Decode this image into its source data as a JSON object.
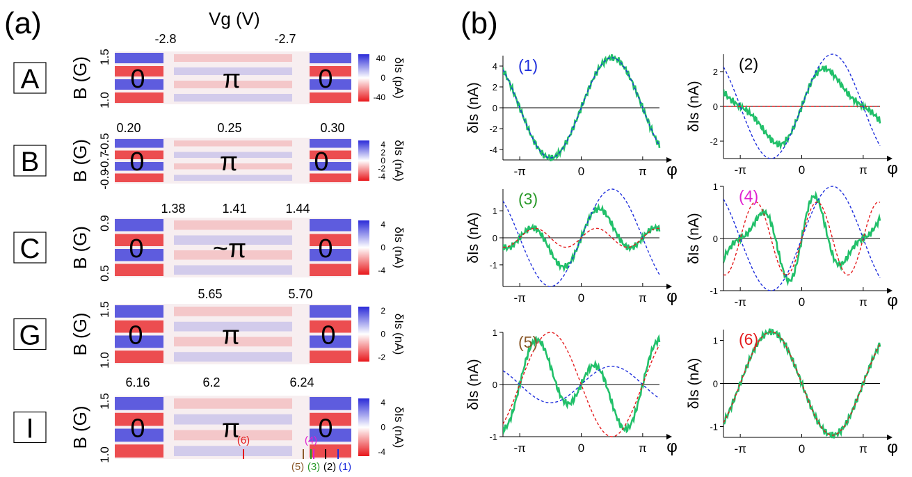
{
  "panel_labels": {
    "a": "(a)",
    "b": "(b)"
  },
  "colors": {
    "blue": "#1f2fdc",
    "red": "#e41a1c",
    "green": "#22c06a",
    "pos_cmap": "#2b2bd8",
    "neg_cmap": "#e8171b"
  },
  "panel_a": {
    "top_axis_label": "Vg (V)",
    "rows": [
      {
        "id": "A",
        "ylabel": "B (G)",
        "yticks": [
          "1.0",
          "1.5"
        ],
        "xticks": [
          "-2.8",
          "-2.7"
        ],
        "cbar_label": "δIs (pA)",
        "cbar_ticks": [
          "40",
          "0",
          "-40"
        ],
        "regions": [
          "0",
          "π",
          "0"
        ]
      },
      {
        "id": "B",
        "ylabel": "B (G)",
        "yticks": [
          "-0.9",
          "-0.7",
          "-0.5"
        ],
        "xticks": [
          "0.20",
          "0.25",
          "0.30"
        ],
        "cbar_label": "δIs (nA)",
        "cbar_ticks": [
          "4",
          "2",
          "0",
          "-2",
          "-4"
        ],
        "regions": [
          "0",
          "π",
          "0"
        ]
      },
      {
        "id": "C",
        "ylabel": "B (G)",
        "yticks": [
          "0.5",
          "0.9"
        ],
        "xticks": [
          "1.38",
          "1.41",
          "1.44"
        ],
        "cbar_label": "δIs (nA)",
        "cbar_ticks": [
          "4",
          "0",
          "-4"
        ],
        "regions": [
          "0",
          "~π",
          "0"
        ]
      },
      {
        "id": "G",
        "ylabel": "B (G)",
        "yticks": [
          "1.0",
          "1.5"
        ],
        "xticks": [
          "5.65",
          "5.70"
        ],
        "cbar_label": "δIs (nA)",
        "cbar_ticks": [
          "2",
          "0",
          "-2"
        ],
        "regions": [
          "0",
          "π",
          "0"
        ]
      },
      {
        "id": "I",
        "ylabel": "B (G)",
        "yticks": [
          "1.0",
          "1.5"
        ],
        "xticks": [
          "6.16",
          "6.2",
          "6.24"
        ],
        "cbar_label": "δIs (nA)",
        "cbar_ticks": [
          "4",
          "0",
          "-4"
        ],
        "regions": [
          "0",
          "π",
          "0"
        ],
        "markers": [
          "(6)",
          "(4)",
          "(5)",
          "(3)",
          "(2)",
          "(1)"
        ]
      }
    ]
  },
  "chart_data": [
    {
      "type": "line",
      "label": "(1)",
      "ylabel": "δIs (nA)",
      "xlabel": "φ",
      "xticks": [
        "-π",
        "0",
        "π"
      ],
      "yticks": [
        "4",
        "2",
        "0",
        "-2",
        "-4"
      ],
      "ylim": [
        -5,
        5
      ],
      "xlim": [
        -4.0,
        4.0
      ],
      "series": [
        {
          "values_desc": "measured",
          "amplitude": 4.8,
          "harmonics": [
            [
              1,
              4.8,
              0
            ]
          ],
          "style": "green"
        },
        {
          "harmonics": [
            [
              1,
              4.8,
              0
            ]
          ],
          "style": "blue-dashed"
        }
      ]
    },
    {
      "type": "line",
      "label": "(2)",
      "ylabel": "δIs (nA)",
      "xlabel": "φ",
      "xticks": [
        "-π",
        "0",
        "π"
      ],
      "yticks": [
        "2",
        "0",
        "-2"
      ],
      "ylim": [
        -3,
        3
      ],
      "xlim": [
        -4.0,
        4.0
      ],
      "series": [
        {
          "harmonics": [
            [
              1,
              1.9,
              0
            ],
            [
              2,
              0.6,
              0
            ]
          ],
          "style": "green"
        },
        {
          "harmonics": [
            [
              1,
              3.0,
              0
            ]
          ],
          "style": "blue-dashed"
        },
        {
          "harmonics": [],
          "style": "red-dashed"
        }
      ]
    },
    {
      "type": "line",
      "label": "(3)",
      "ylabel": "δIs (nA)",
      "xlabel": "φ",
      "xticks": [
        "-π",
        "0",
        "π"
      ],
      "yticks": [
        "1",
        "0",
        "-1"
      ],
      "ylim": [
        -1.8,
        1.8
      ],
      "xlim": [
        -4.0,
        4.0
      ],
      "series": [
        {
          "harmonics": [
            [
              1,
              0.5,
              0
            ],
            [
              2,
              0.7,
              0
            ]
          ],
          "style": "green"
        },
        {
          "harmonics": [
            [
              1,
              1.8,
              0
            ]
          ],
          "style": "blue-dashed"
        },
        {
          "harmonics": [
            [
              2,
              0.35,
              0
            ]
          ],
          "style": "red-dashed"
        }
      ]
    },
    {
      "type": "line",
      "label": "(4)",
      "ylabel": "δIs (nA)",
      "xlabel": "φ",
      "xticks": [
        "-π",
        "0",
        "π"
      ],
      "yticks": [
        "1",
        "0",
        "-1"
      ],
      "ylim": [
        -1.0,
        1.0
      ],
      "xlim": [
        -4.0,
        4.0
      ],
      "series": [
        {
          "harmonics": [
            [
              2,
              0.55,
              0
            ],
            [
              3,
              0.3,
              0
            ]
          ],
          "style": "green"
        },
        {
          "harmonics": [
            [
              1,
              1.0,
              0
            ]
          ],
          "style": "blue-dashed"
        },
        {
          "harmonics": [
            [
              2,
              0.7,
              0
            ]
          ],
          "style": "red-dashed"
        }
      ]
    },
    {
      "type": "line",
      "label": "(5)",
      "ylabel": "δIs (nA)",
      "xlabel": "φ",
      "xticks": [
        "-π",
        "0",
        "π"
      ],
      "yticks": [
        "1",
        "0",
        "-1"
      ],
      "ylim": [
        -1.0,
        1.0
      ],
      "xlim": [
        -4.0,
        4.0
      ],
      "series": [
        {
          "harmonics": [
            [
              1,
              -0.35,
              0
            ],
            [
              2,
              0.6,
              0
            ]
          ],
          "style": "green"
        },
        {
          "harmonics": [
            [
              1,
              0.35,
              0
            ]
          ],
          "style": "blue-dashed"
        },
        {
          "harmonics": [
            [
              1,
              -1.0,
              0
            ]
          ],
          "style": "red-dashed"
        }
      ]
    },
    {
      "type": "line",
      "label": "(6)",
      "ylabel": "δIs (nA)",
      "xlabel": "φ",
      "xticks": [
        "-π",
        "0",
        "π"
      ],
      "yticks": [
        "1",
        "0",
        "-1"
      ],
      "ylim": [
        -1.25,
        1.25
      ],
      "xlim": [
        -4.0,
        4.0
      ],
      "series": [
        {
          "harmonics": [
            [
              1,
              -1.2,
              0
            ]
          ],
          "style": "green"
        },
        {
          "harmonics": [
            [
              1,
              -1.2,
              0
            ]
          ],
          "style": "red-dashed"
        }
      ]
    }
  ]
}
